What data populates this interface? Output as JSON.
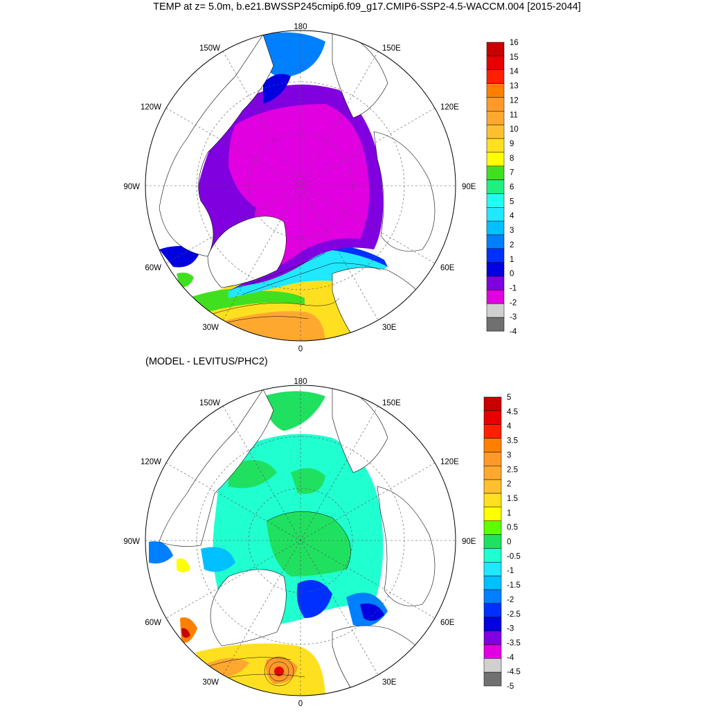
{
  "title": "TEMP at z=   5.0m, b.e21.BWSSP245cmip6.f09_g17.CMIP6-SSP2-4.5-WACCM.004 [2015-2044]",
  "subtitle": "(MODEL - LEVITUS/PHC2)",
  "lon_labels": [
    "180",
    "150E",
    "120E",
    "90E",
    "60E",
    "30E",
    "0",
    "30W",
    "60W",
    "90W",
    "120W",
    "150W"
  ],
  "panels": [
    {
      "name": "model-temperature",
      "colorbar_labels": [
        "16",
        "15",
        "14",
        "13",
        "12",
        "11",
        "10",
        "9",
        "8",
        "7",
        "6",
        "5",
        "4",
        "3",
        "2",
        "1",
        "0",
        "-1",
        "-2",
        "-3",
        "-4"
      ],
      "colorbar_colors": [
        "#c80000",
        "#e80000",
        "#ff2000",
        "#ff8000",
        "#ff9a2a",
        "#ffa830",
        "#ffc030",
        "#ffe020",
        "#ffff00",
        "#40e020",
        "#20f080",
        "#20fff0",
        "#20e8ff",
        "#00c0ff",
        "#0080ff",
        "#0030ff",
        "#0000e0",
        "#8000e0",
        "#e000e0",
        "#d0d0d0",
        "#707070"
      ]
    },
    {
      "name": "model-minus-levitus",
      "colorbar_labels": [
        "5",
        "4.5",
        "4",
        "3.5",
        "3",
        "2.5",
        "2",
        "1.5",
        "1",
        "0.5",
        "0",
        "-0.5",
        "-1",
        "-1.5",
        "-2",
        "-2.5",
        "-3",
        "-3.5",
        "-4",
        "-4.5",
        "-5"
      ],
      "colorbar_colors": [
        "#c80000",
        "#e80000",
        "#ff2000",
        "#ff8000",
        "#ff9a2a",
        "#ffa830",
        "#ffc030",
        "#ffe020",
        "#ffff00",
        "#60ff00",
        "#20e060",
        "#20ffd0",
        "#20e8ff",
        "#00c0ff",
        "#0080ff",
        "#0030ff",
        "#0000e0",
        "#8000e0",
        "#e000e0",
        "#d0d0d0",
        "#707070"
      ]
    }
  ]
}
